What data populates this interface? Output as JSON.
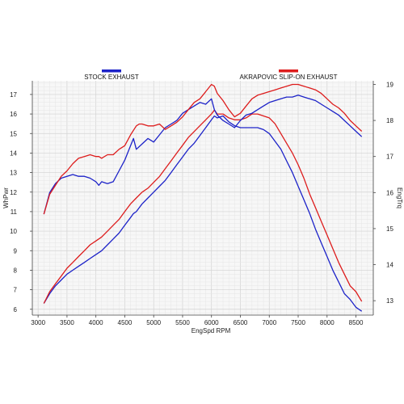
{
  "chart_data": {
    "type": "line",
    "xlabel": "EngSpd  RPM",
    "ylabel_left": "WhPwr",
    "ylabel_right": "EngTrq",
    "xlim": [
      2900,
      8800
    ],
    "ylim_left": [
      5.7,
      17.7
    ],
    "ylim_right": [
      12.6,
      19.1
    ],
    "x_ticks": [
      3000,
      3500,
      4000,
      4500,
      5000,
      5500,
      6000,
      6500,
      7000,
      7500,
      8000,
      8500
    ],
    "y_left_ticks": [
      6,
      7,
      8,
      9,
      10,
      11,
      12,
      13,
      14,
      15,
      16,
      17
    ],
    "y_right_ticks": [
      13,
      14,
      15,
      16,
      17,
      18,
      19
    ],
    "grid": true,
    "legend": [
      {
        "name": "STOCK EXHAUST",
        "color": "#1c22c8"
      },
      {
        "name": "AKRAPOVIC SLIP-ON EXHAUST",
        "color": "#dd1c1c"
      }
    ],
    "series": [
      {
        "name": "STOCK EXHAUST",
        "quantity": "WhPwr",
        "axis": "left",
        "color": "#1c22c8",
        "x": [
          3100,
          3200,
          3300,
          3400,
          3500,
          3600,
          3700,
          3800,
          3900,
          4000,
          4100,
          4200,
          4300,
          4400,
          4500,
          4600,
          4650,
          4700,
          4800,
          4900,
          5000,
          5100,
          5200,
          5300,
          5400,
          5500,
          5600,
          5700,
          5800,
          5900,
          6000,
          6050,
          6100,
          6200,
          6300,
          6400,
          6500,
          6600,
          6700,
          6800,
          6900,
          7000,
          7100,
          7200,
          7300,
          7400,
          7500,
          7600,
          7700,
          7800,
          7900,
          8000,
          8100,
          8200,
          8300,
          8400,
          8500,
          8600
        ],
        "y": [
          6.3,
          6.8,
          7.2,
          7.5,
          7.8,
          8.0,
          8.2,
          8.4,
          8.6,
          8.8,
          9.0,
          9.3,
          9.6,
          9.9,
          10.3,
          10.7,
          10.9,
          11.0,
          11.4,
          11.7,
          12.0,
          12.3,
          12.6,
          13.0,
          13.4,
          13.8,
          14.2,
          14.5,
          14.9,
          15.3,
          15.7,
          15.9,
          15.8,
          15.9,
          15.6,
          15.4,
          15.3,
          15.3,
          15.3,
          15.3,
          15.2,
          15.0,
          14.6,
          14.2,
          13.6,
          13.0,
          12.3,
          11.6,
          10.9,
          10.1,
          9.4,
          8.7,
          8.0,
          7.4,
          6.8,
          6.5,
          6.1,
          5.9
        ]
      },
      {
        "name": "AKRAPOVIC SLIP-ON EXHAUST",
        "quantity": "WhPwr",
        "axis": "left",
        "color": "#dd1c1c",
        "x": [
          3100,
          3200,
          3300,
          3400,
          3500,
          3600,
          3700,
          3800,
          3900,
          4000,
          4100,
          4200,
          4300,
          4400,
          4500,
          4600,
          4700,
          4800,
          4900,
          5000,
          5100,
          5200,
          5300,
          5400,
          5500,
          5600,
          5700,
          5800,
          5900,
          6000,
          6050,
          6100,
          6200,
          6300,
          6400,
          6500,
          6600,
          6700,
          6800,
          6900,
          7000,
          7100,
          7200,
          7300,
          7400,
          7500,
          7600,
          7700,
          7800,
          7900,
          8000,
          8100,
          8200,
          8300,
          8400,
          8500,
          8600
        ],
        "y": [
          6.3,
          6.9,
          7.3,
          7.7,
          8.1,
          8.4,
          8.7,
          9.0,
          9.3,
          9.5,
          9.7,
          10.0,
          10.3,
          10.6,
          11.0,
          11.4,
          11.7,
          12.0,
          12.2,
          12.5,
          12.8,
          13.2,
          13.6,
          14.0,
          14.4,
          14.8,
          15.1,
          15.4,
          15.7,
          16.0,
          16.2,
          16.0,
          16.0,
          15.8,
          15.7,
          15.7,
          15.8,
          16.0,
          16.0,
          15.9,
          15.8,
          15.5,
          15.0,
          14.5,
          14.0,
          13.4,
          12.7,
          11.9,
          11.2,
          10.5,
          9.8,
          9.1,
          8.4,
          7.8,
          7.2,
          6.9,
          6.4
        ]
      },
      {
        "name": "STOCK EXHAUST",
        "quantity": "EngTrq",
        "axis": "right",
        "color": "#1c22c8",
        "x": [
          3100,
          3200,
          3300,
          3400,
          3500,
          3600,
          3700,
          3800,
          3900,
          4000,
          4050,
          4100,
          4200,
          4300,
          4400,
          4500,
          4550,
          4600,
          4650,
          4700,
          4800,
          4900,
          5000,
          5100,
          5200,
          5300,
          5400,
          5500,
          5600,
          5700,
          5800,
          5900,
          6000,
          6050,
          6100,
          6200,
          6300,
          6400,
          6500,
          6600,
          6700,
          6800,
          6900,
          7000,
          7100,
          7200,
          7300,
          7400,
          7500,
          7600,
          7700,
          7800,
          7900,
          8000,
          8100,
          8200,
          8300,
          8400,
          8500,
          8600
        ],
        "y": [
          15.4,
          16.0,
          16.25,
          16.4,
          16.45,
          16.5,
          16.45,
          16.45,
          16.4,
          16.3,
          16.2,
          16.3,
          16.25,
          16.3,
          16.6,
          16.9,
          17.1,
          17.3,
          17.5,
          17.2,
          17.35,
          17.5,
          17.4,
          17.6,
          17.8,
          17.9,
          18.0,
          18.2,
          18.3,
          18.4,
          18.5,
          18.45,
          18.6,
          18.3,
          18.15,
          18.0,
          17.9,
          17.8,
          18.0,
          18.15,
          18.2,
          18.3,
          18.4,
          18.5,
          18.55,
          18.6,
          18.65,
          18.65,
          18.7,
          18.65,
          18.6,
          18.55,
          18.45,
          18.35,
          18.25,
          18.15,
          18.0,
          17.85,
          17.7,
          17.55
        ]
      },
      {
        "name": "AKRAPOVIC SLIP-ON EXHAUST",
        "quantity": "EngTrq",
        "axis": "right",
        "color": "#dd1c1c",
        "x": [
          3100,
          3200,
          3300,
          3400,
          3500,
          3600,
          3700,
          3800,
          3900,
          4000,
          4050,
          4100,
          4200,
          4300,
          4400,
          4500,
          4600,
          4700,
          4750,
          4800,
          4900,
          5000,
          5100,
          5200,
          5300,
          5400,
          5500,
          5600,
          5700,
          5800,
          5900,
          6000,
          6050,
          6100,
          6200,
          6300,
          6400,
          6500,
          6600,
          6700,
          6800,
          6900,
          7000,
          7100,
          7200,
          7300,
          7400,
          7500,
          7600,
          7700,
          7800,
          7900,
          8000,
          8100,
          8200,
          8300,
          8400,
          8500,
          8600
        ],
        "y": [
          15.4,
          15.95,
          16.2,
          16.45,
          16.6,
          16.8,
          16.95,
          17.0,
          17.05,
          17.0,
          17.0,
          16.95,
          17.05,
          17.05,
          17.2,
          17.3,
          17.6,
          17.85,
          17.9,
          17.9,
          17.85,
          17.85,
          17.9,
          17.75,
          17.85,
          17.95,
          18.1,
          18.3,
          18.5,
          18.6,
          18.8,
          19.0,
          18.95,
          18.75,
          18.55,
          18.3,
          18.1,
          18.2,
          18.4,
          18.6,
          18.7,
          18.75,
          18.8,
          18.85,
          18.9,
          18.95,
          19.0,
          19.0,
          18.95,
          18.9,
          18.85,
          18.75,
          18.6,
          18.45,
          18.35,
          18.2,
          18.0,
          17.85,
          17.7
        ]
      }
    ]
  }
}
